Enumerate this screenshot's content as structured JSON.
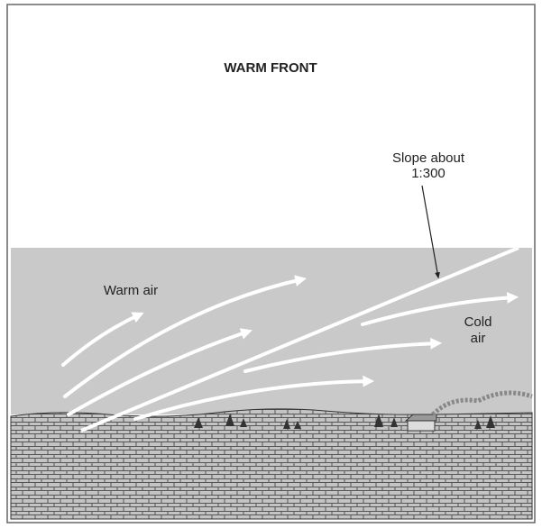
{
  "title": "WARM FRONT",
  "labels": {
    "slope": [
      "Slope about",
      "1:300"
    ],
    "warm_air": "Warm air",
    "cold_air": [
      "Cold",
      "air"
    ]
  }
}
